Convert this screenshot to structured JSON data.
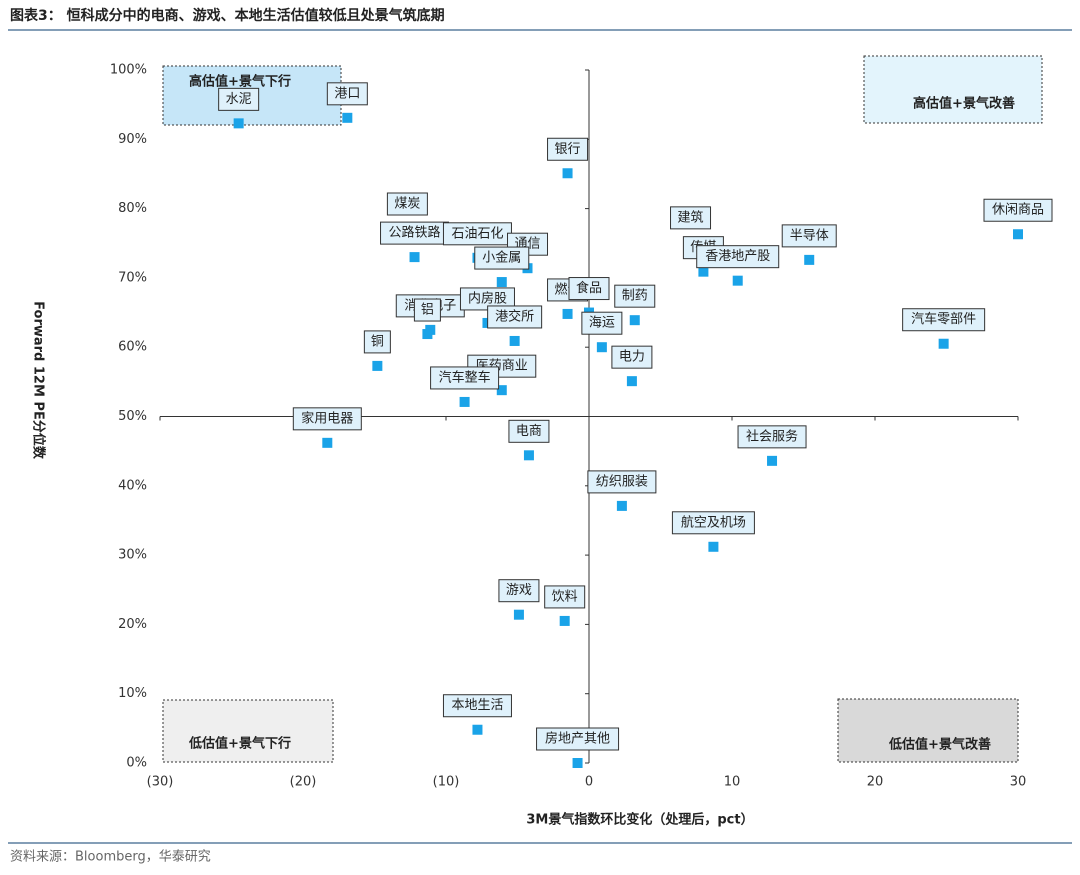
{
  "chart_data": {
    "type": "scatter",
    "title": "图表3： 恒科成分中的电商、游戏、本地生活估值较低且处景气筑底期",
    "source": "资料来源：Bloomberg，华泰研究",
    "x_label": "3M景气指数环比变化（处理后，pct）",
    "y_label": "Forward 12M PE分位数",
    "color": "#1aa3e8",
    "xlim": [
      -30,
      30
    ],
    "ylim": [
      0,
      100
    ],
    "xticks": [
      {
        "value": -30,
        "label": "(30)"
      },
      {
        "value": -20,
        "label": "(20)"
      },
      {
        "value": -10,
        "label": "(10)"
      },
      0,
      10,
      20,
      30
    ],
    "yticks": [
      {
        "value": 0,
        "label": "0%"
      },
      {
        "value": 10,
        "label": "10%"
      },
      {
        "value": 20,
        "label": "20%"
      },
      {
        "value": 30,
        "label": "30%"
      },
      {
        "value": 40,
        "label": "40%"
      },
      {
        "value": 50,
        "label": "50%"
      },
      {
        "value": 60,
        "label": "60%"
      },
      {
        "value": 70,
        "label": "70%"
      },
      {
        "value": 80,
        "label": "80%"
      },
      {
        "value": 90,
        "label": "90%"
      },
      {
        "value": 100,
        "label": "100%"
      }
    ],
    "quadrants": [
      "高估值+景气下行",
      "高估值+景气改善",
      "低估值+景气下行",
      "低估值+景气改善"
    ],
    "points": [
      {
        "label": "水泥",
        "x": -24.5,
        "y": 92.3
      },
      {
        "label": "港口",
        "x": -16.9,
        "y": 93.1
      },
      {
        "label": "银行",
        "x": -1.5,
        "y": 85.1
      },
      {
        "label": "煤炭",
        "x": -12.7,
        "y": 77.2
      },
      {
        "label": "公路铁路",
        "x": -12.2,
        "y": 73.0
      },
      {
        "label": "石油石化",
        "x": -7.8,
        "y": 72.9
      },
      {
        "label": "通信",
        "x": -4.3,
        "y": 71.4
      },
      {
        "label": "小金属",
        "x": -6.1,
        "y": 69.4
      },
      {
        "label": "休闲商品",
        "x": 30.0,
        "y": 76.3
      },
      {
        "label": "建筑",
        "x": 7.1,
        "y": 75.2
      },
      {
        "label": "传媒",
        "x": 8.0,
        "y": 70.9
      },
      {
        "label": "香港地产股",
        "x": 10.4,
        "y": 69.6
      },
      {
        "label": "半导体",
        "x": 15.4,
        "y": 72.6
      },
      {
        "label": "燃气",
        "x": -1.5,
        "y": 64.8
      },
      {
        "label": "食品",
        "x": 0.0,
        "y": 65.0
      },
      {
        "label": "制药",
        "x": 3.2,
        "y": 63.9
      },
      {
        "label": "海运",
        "x": 0.9,
        "y": 60.0
      },
      {
        "label": "电力",
        "x": 3.0,
        "y": 55.1
      },
      {
        "label": "汽车零部件",
        "x": 24.8,
        "y": 60.5
      },
      {
        "label": "消费电子",
        "x": -11.1,
        "y": 62.5
      },
      {
        "label": "铝",
        "x": -11.3,
        "y": 61.9
      },
      {
        "label": "内房股",
        "x": -7.1,
        "y": 63.5
      },
      {
        "label": "港交所",
        "x": -5.2,
        "y": 60.9
      },
      {
        "label": "铜",
        "x": -14.8,
        "y": 57.3
      },
      {
        "label": "医药商业",
        "x": -6.1,
        "y": 53.8
      },
      {
        "label": "汽车整车",
        "x": -8.7,
        "y": 52.1
      },
      {
        "label": "家用电器",
        "x": -18.3,
        "y": 46.2
      },
      {
        "label": "电商",
        "x": -4.2,
        "y": 44.4
      },
      {
        "label": "社会服务",
        "x": 12.8,
        "y": 43.6
      },
      {
        "label": "纺织服装",
        "x": 2.3,
        "y": 37.1
      },
      {
        "label": "航空及机场",
        "x": 8.7,
        "y": 31.2
      },
      {
        "label": "游戏",
        "x": -4.9,
        "y": 21.4
      },
      {
        "label": "饮料",
        "x": -1.7,
        "y": 20.5
      },
      {
        "label": "本地生活",
        "x": -7.8,
        "y": 4.8
      },
      {
        "label": "房地产其他",
        "x": -0.8,
        "y": 0.0
      }
    ]
  }
}
